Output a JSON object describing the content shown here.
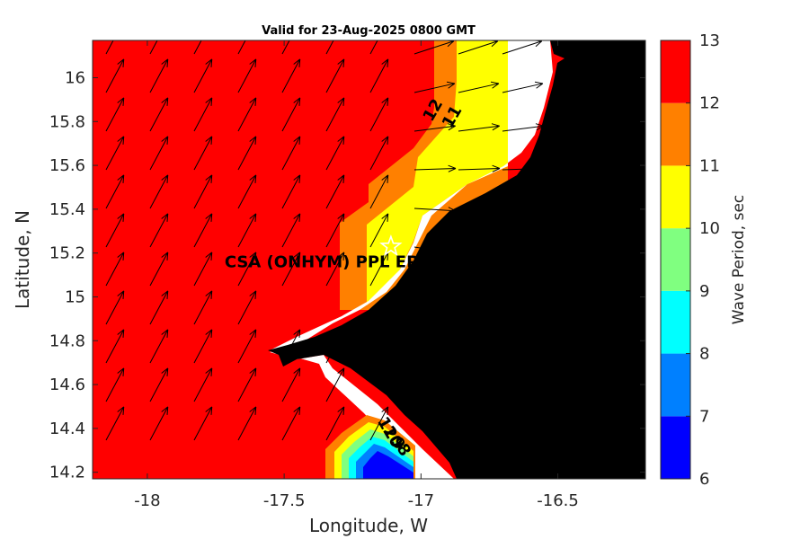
{
  "title": "Valid for 23-Aug-2025 0800 GMT",
  "x_axis": {
    "label": "Longitude, W",
    "range": [
      -18.2,
      -16.18
    ],
    "ticks": [
      {
        "v": -18,
        "t": "-18"
      },
      {
        "v": -17.5,
        "t": "-17.5"
      },
      {
        "v": -17,
        "t": "-17"
      },
      {
        "v": -16.5,
        "t": "-16.5"
      }
    ]
  },
  "y_axis": {
    "label": "Latitude, N",
    "range": [
      14.17,
      16.17
    ],
    "ticks": [
      {
        "v": 16,
        "t": "16"
      },
      {
        "v": 15.8,
        "t": "15.8"
      },
      {
        "v": 15.6,
        "t": "15.6"
      },
      {
        "v": 15.4,
        "t": "15.4"
      },
      {
        "v": 15.2,
        "t": "15.2"
      },
      {
        "v": 15,
        "t": "15"
      },
      {
        "v": 14.8,
        "t": "14.8"
      },
      {
        "v": 14.6,
        "t": "14.6"
      },
      {
        "v": 14.4,
        "t": "14.4"
      },
      {
        "v": 14.2,
        "t": "14.2"
      }
    ]
  },
  "colorbar": {
    "label": "Wave Period, sec",
    "range": [
      6,
      13
    ],
    "ticks": [
      "6",
      "7",
      "8",
      "9",
      "10",
      "11",
      "12",
      "13"
    ],
    "bands": [
      {
        "from": 6,
        "to": 7,
        "color": "#0000ff"
      },
      {
        "from": 7,
        "to": 8,
        "color": "#0080ff"
      },
      {
        "from": 8,
        "to": 9,
        "color": "#00ffff"
      },
      {
        "from": 9,
        "to": 10,
        "color": "#80ff80"
      },
      {
        "from": 10,
        "to": 11,
        "color": "#ffff00"
      },
      {
        "from": 11,
        "to": 12,
        "color": "#ff8000"
      },
      {
        "from": 12,
        "to": 13,
        "color": "#ff0000"
      }
    ]
  },
  "colors": {
    "land": "#000000",
    "no_data": "#ffffff",
    "arrow": "#000000"
  },
  "site": {
    "name": "CSA (ONHYM) PPL EP",
    "lon": -17.11,
    "lat": 15.23
  },
  "contour_labels": [
    {
      "text": "12",
      "lon": -16.94,
      "lat": 15.84,
      "rotate": -60
    },
    {
      "text": "11",
      "lon": -16.87,
      "lat": 15.81,
      "rotate": -60
    },
    {
      "text": "12",
      "lon": -17.14,
      "lat": 14.39,
      "rotate": 60
    },
    {
      "text": "10",
      "lon": -17.12,
      "lat": 14.35,
      "rotate": 60
    },
    {
      "text": "9",
      "lon": -17.1,
      "lat": 14.32,
      "rotate": 60
    },
    {
      "text": "8",
      "lon": -17.08,
      "lat": 14.29,
      "rotate": 60
    }
  ]
}
